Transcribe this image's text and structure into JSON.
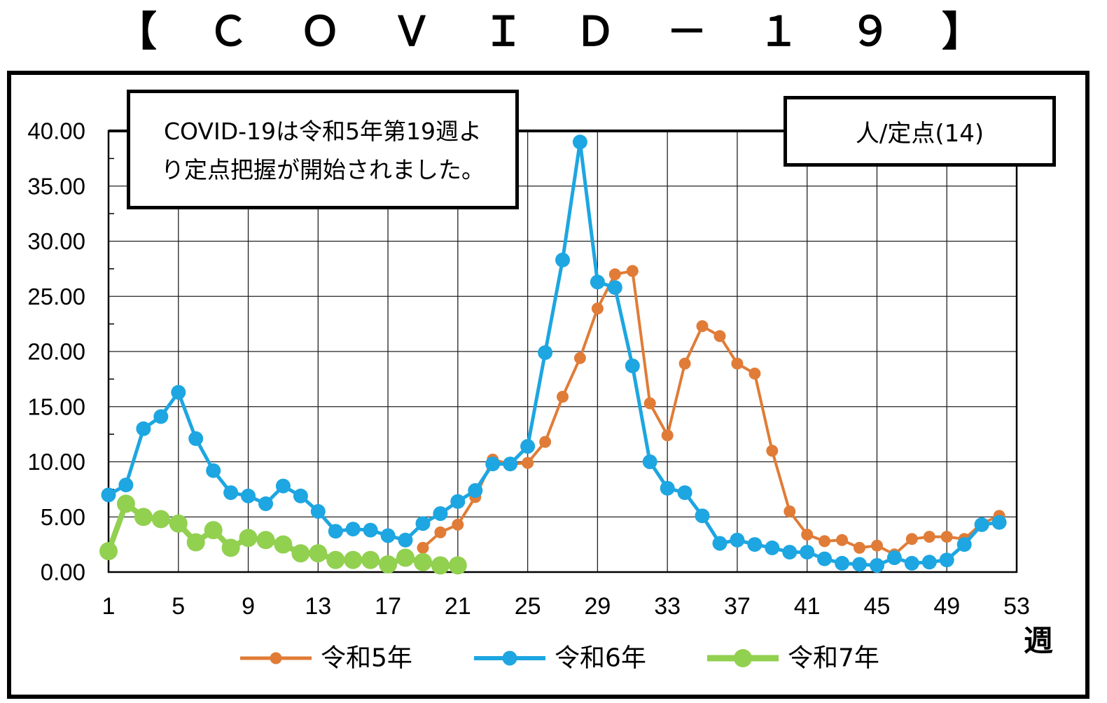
{
  "chart_data": {
    "type": "line",
    "title": "【ＣＯＶＩＤ－１９】",
    "annotation": [
      "COVID-19は令和5年第19週よ",
      "り定点把握が開始されました。"
    ],
    "ylabel": "人/定点(14)",
    "xlabel": "週",
    "xlim": [
      1,
      53
    ],
    "ylim": [
      0,
      40
    ],
    "xticks": [
      "1",
      "5",
      "9",
      "13",
      "17",
      "21",
      "25",
      "29",
      "33",
      "37",
      "41",
      "45",
      "49",
      "53"
    ],
    "yticks": [
      "0.00",
      "5.00",
      "10.00",
      "15.00",
      "20.00",
      "25.00",
      "30.00",
      "35.00",
      "40.00"
    ],
    "grid": true,
    "markers": true,
    "legend": "bottom",
    "series": [
      {
        "name": "令和5年",
        "color": "#E07C37",
        "x": [
          19,
          20,
          21,
          22,
          23,
          24,
          25,
          26,
          27,
          28,
          29,
          30,
          31,
          32,
          33,
          34,
          35,
          36,
          37,
          38,
          39,
          40,
          41,
          42,
          43,
          44,
          45,
          46,
          47,
          48,
          49,
          50,
          51,
          52
        ],
        "values": [
          2.2,
          3.6,
          4.3,
          6.8,
          10.2,
          9.8,
          9.9,
          11.8,
          15.9,
          19.4,
          23.9,
          27.0,
          27.3,
          15.3,
          12.4,
          18.9,
          22.3,
          21.4,
          18.9,
          18.0,
          11.0,
          5.5,
          3.4,
          2.8,
          2.9,
          2.2,
          2.4,
          1.6,
          3.0,
          3.2,
          3.2,
          3.0,
          4.4,
          5.1
        ]
      },
      {
        "name": "令和6年",
        "color": "#1DA6E1",
        "x": [
          1,
          2,
          3,
          4,
          5,
          6,
          7,
          8,
          9,
          10,
          11,
          12,
          13,
          14,
          15,
          16,
          17,
          18,
          19,
          20,
          21,
          22,
          23,
          24,
          25,
          26,
          27,
          28,
          29,
          30,
          31,
          32,
          33,
          34,
          35,
          36,
          37,
          38,
          39,
          40,
          41,
          42,
          43,
          44,
          45,
          46,
          47,
          48,
          49,
          50,
          51,
          52
        ],
        "values": [
          7.0,
          7.9,
          13.0,
          14.1,
          16.3,
          12.1,
          9.2,
          7.2,
          6.9,
          6.2,
          7.8,
          6.9,
          5.5,
          3.7,
          3.9,
          3.8,
          3.3,
          2.9,
          4.4,
          5.3,
          6.4,
          7.4,
          9.8,
          9.8,
          11.4,
          19.9,
          28.3,
          39.0,
          26.3,
          25.8,
          18.7,
          10.0,
          7.6,
          7.2,
          5.1,
          2.6,
          2.9,
          2.5,
          2.2,
          1.8,
          1.8,
          1.2,
          0.8,
          0.7,
          0.6,
          1.3,
          0.8,
          0.9,
          1.1,
          2.5,
          4.3,
          4.5
        ]
      },
      {
        "name": "令和7年",
        "color": "#92D050",
        "x": [
          1,
          2,
          3,
          4,
          5,
          6,
          7,
          8,
          9,
          10,
          11,
          12,
          13,
          14,
          15,
          16,
          17,
          18,
          19,
          20,
          21
        ],
        "values": [
          1.9,
          6.2,
          5.0,
          4.8,
          4.4,
          2.7,
          3.8,
          2.2,
          3.1,
          2.9,
          2.5,
          1.7,
          1.7,
          1.1,
          1.1,
          1.1,
          0.7,
          1.3,
          0.9,
          0.6,
          0.6
        ]
      }
    ]
  }
}
